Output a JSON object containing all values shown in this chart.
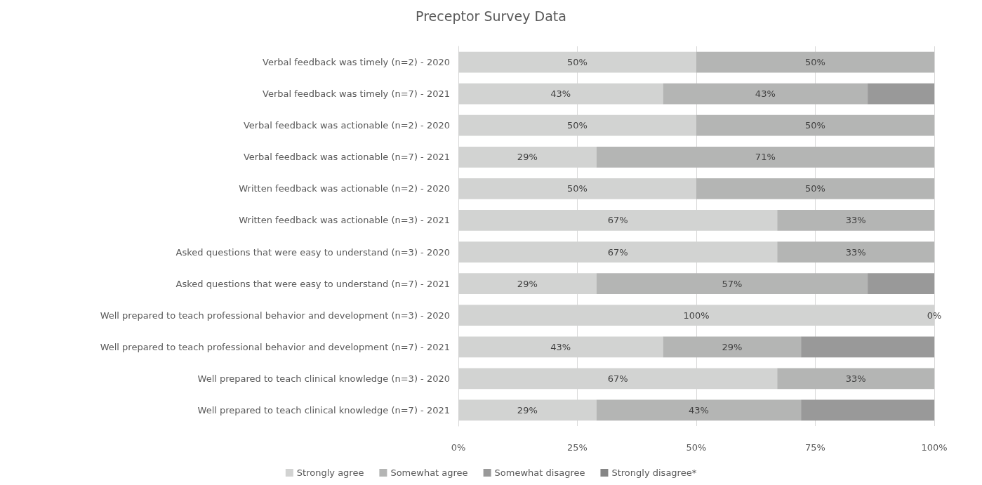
{
  "chart_data": {
    "type": "bar",
    "orientation": "horizontal",
    "stacked": true,
    "title": "Preceptor Survey Data",
    "categories": [
      "Verbal feedback was timely (n=2) - 2020",
      "Verbal feedback was timely (n=7) - 2021",
      "Verbal feedback was actionable (n=2) - 2020",
      "Verbal feedback was actionable (n=7) - 2021",
      "Written feedback was actionable (n=2) - 2020",
      "Written feedback was actionable (n=3) - 2021",
      "Asked questions that were easy to understand (n=3) - 2020",
      "Asked questions that were easy to understand (n=7) - 2021",
      "Well prepared to teach professional behavior and development (n=3) - 2020",
      "Well prepared to teach professional behavior and development (n=7) - 2021",
      "Well prepared to teach clinical knowledge (n=3) - 2020",
      "Well prepared to teach clinical knowledge (n=7) - 2021"
    ],
    "series": [
      {
        "name": "Strongly agree",
        "color": "#d2d3d2",
        "values": [
          50,
          43,
          50,
          29,
          50,
          67,
          67,
          29,
          100,
          43,
          67,
          29
        ],
        "value_labels": [
          "50%",
          "43%",
          "50%",
          "29%",
          "50%",
          "67%",
          "67%",
          "29%",
          "100%",
          "43%",
          "67%",
          "29%"
        ]
      },
      {
        "name": "Somewhat agree",
        "color": "#b4b5b4",
        "values": [
          50,
          43,
          50,
          71,
          50,
          33,
          33,
          57,
          0,
          29,
          33,
          43
        ],
        "value_labels": [
          "50%",
          "43%",
          "50%",
          "71%",
          "50%",
          "33%",
          "33%",
          "57%",
          "0%",
          "29%",
          "33%",
          "43%"
        ]
      },
      {
        "name": "Somewhat disagree",
        "color": "#999999",
        "values": [
          null,
          14,
          null,
          null,
          null,
          null,
          null,
          14,
          null,
          28,
          null,
          28
        ]
      },
      {
        "name": "Strongly disagree*",
        "color": "#858585",
        "values": [
          null,
          null,
          null,
          null,
          null,
          null,
          null,
          null,
          null,
          null,
          null,
          null
        ]
      }
    ],
    "xlim": [
      0,
      100
    ],
    "xticks": [
      {
        "value": 0,
        "label": "0%"
      },
      {
        "value": 25,
        "label": "25%"
      },
      {
        "value": 50,
        "label": "50%"
      },
      {
        "value": 75,
        "label": "75%"
      },
      {
        "value": 100,
        "label": "100%"
      }
    ],
    "grid": "x",
    "legend": "bottom"
  }
}
